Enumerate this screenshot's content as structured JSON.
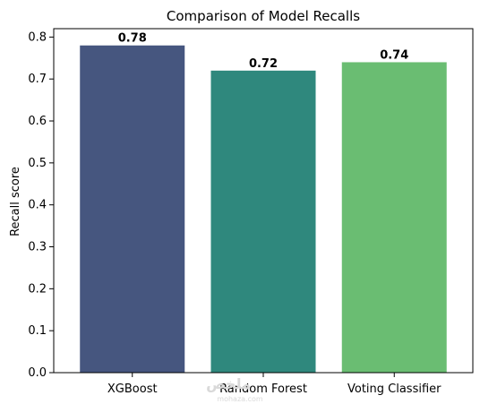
{
  "chart_data": {
    "type": "bar",
    "title": "Comparison of Model Recalls",
    "xlabel": "",
    "ylabel": "Recall score",
    "categories": [
      "XGBoost",
      "Random Forest",
      "Voting Classifier"
    ],
    "values": [
      0.78,
      0.72,
      0.74
    ],
    "data_labels": [
      "0.78",
      "0.72",
      "0.74"
    ],
    "colors": [
      "#46567f",
      "#2f887d",
      "#6abd72"
    ],
    "ylim": [
      0,
      0.82
    ],
    "yticks": [
      "0.0",
      "0.1",
      "0.2",
      "0.3",
      "0.4",
      "0.5",
      "0.6",
      "0.7",
      "0.8"
    ],
    "grid": false,
    "legend": null
  },
  "watermark": {
    "main": "ملخص",
    "sub": "mohaza.com"
  }
}
